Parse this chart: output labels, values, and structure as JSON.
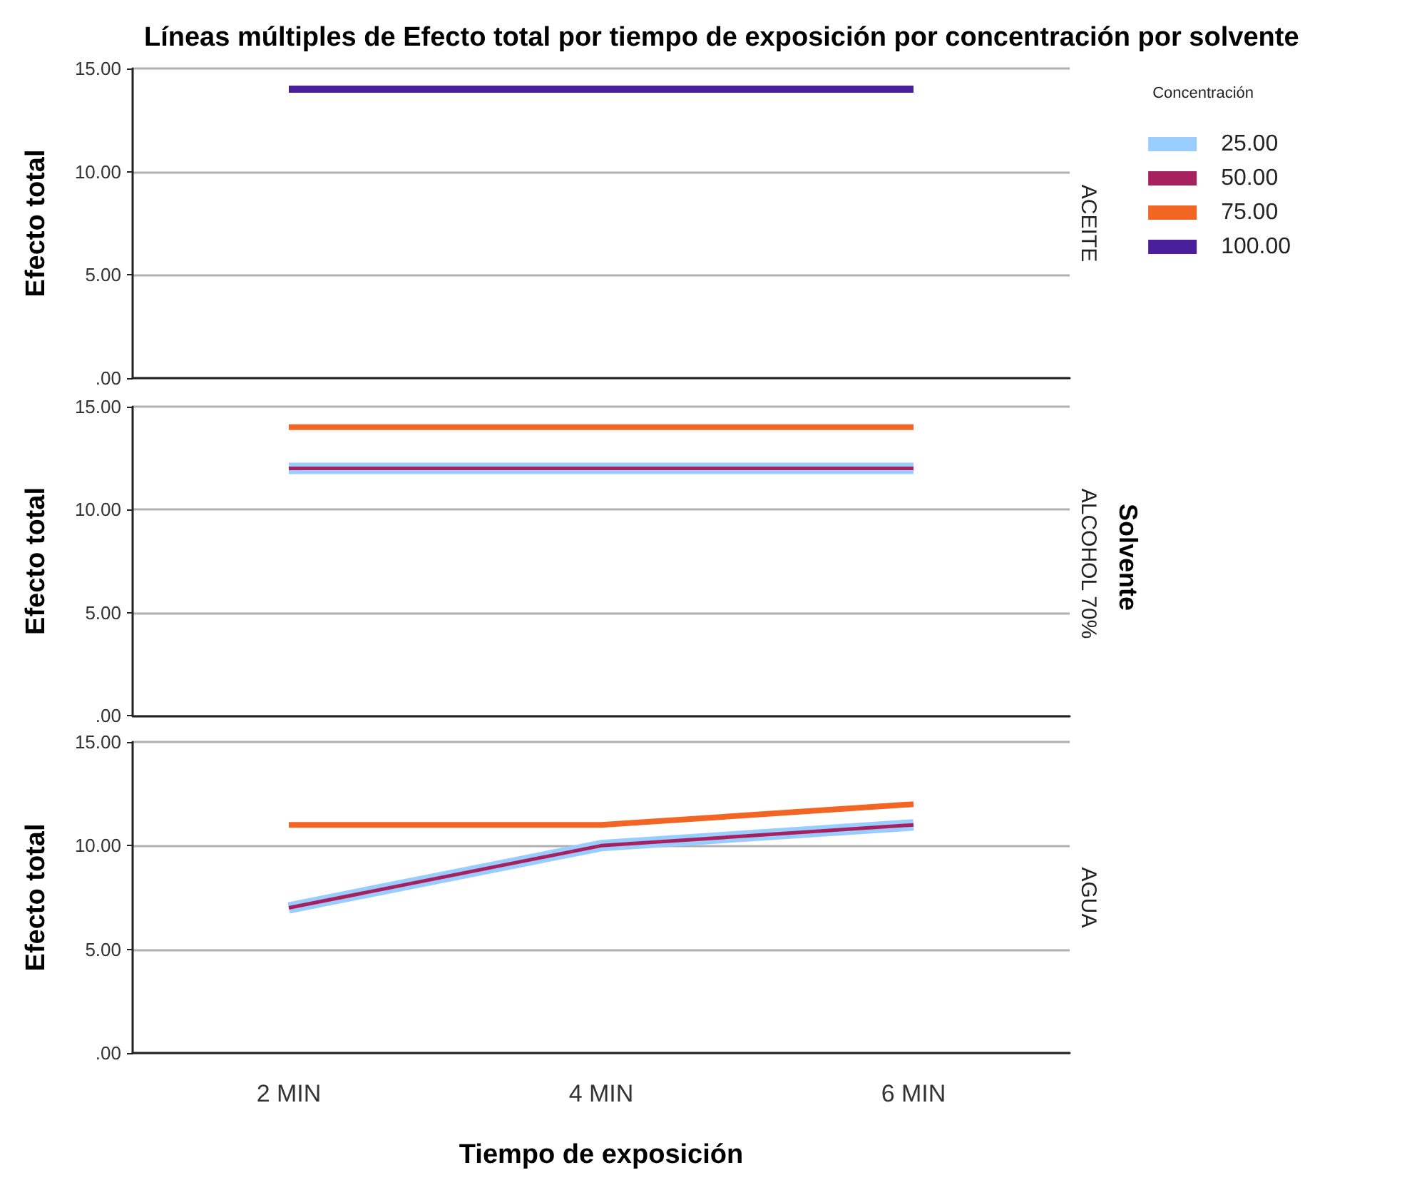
{
  "chart_data": [
    {
      "type": "line",
      "title": "Líneas múltiples de Efecto total por tiempo de exposición por concentración por solvente",
      "ylabel": "Efecto total",
      "y2label": "ACEITE",
      "legend_title": "Concentración",
      "legend": "top right",
      "grid": "y",
      "tick_labels": "y",
      "categories": [
        null,
        null,
        null
      ],
      "ylim": [
        0,
        15
      ],
      "yticks": [
        {
          "value": 0,
          "label": ".00"
        },
        {
          "value": 5,
          "label": "5.00"
        },
        {
          "value": 10,
          "label": "10.00"
        },
        {
          "value": 15,
          "label": "15.00"
        }
      ],
      "series": [
        {
          "name": "25.00",
          "color": "#99ccff",
          "values": [
            null,
            null,
            null
          ]
        },
        {
          "name": "50.00",
          "color": "#a8215f",
          "values": [
            null,
            null,
            null
          ]
        },
        {
          "name": "75.00",
          "color": "#f26522",
          "values": [
            null,
            null,
            null
          ]
        },
        {
          "name": "100.00",
          "color": "#4b1e9e",
          "values": [
            14,
            14,
            14
          ]
        }
      ]
    },
    {
      "type": "line",
      "ylabel": "Efecto total",
      "y2label": "ALCOHOL 70%",
      "annotations": [
        "Solvente"
      ],
      "grid": "y",
      "tick_labels": "y",
      "categories": [
        null,
        null,
        null
      ],
      "ylim": [
        0,
        15
      ],
      "yticks": [
        {
          "value": 0,
          "label": ".00"
        },
        {
          "value": 5,
          "label": "5.00"
        },
        {
          "value": 10,
          "label": "10.00"
        },
        {
          "value": 15,
          "label": "15.00"
        }
      ],
      "series": [
        {
          "color": "#99ccff",
          "values": [
            12,
            12,
            12
          ]
        },
        {
          "color": "#a8215f",
          "values": [
            12,
            12,
            12
          ]
        },
        {
          "color": "#f26522",
          "values": [
            14,
            14,
            14
          ]
        }
      ]
    },
    {
      "type": "line",
      "ylabel": "Efecto total",
      "y2label": "AGUA",
      "xlabel": "Tiempo de exposición",
      "grid": "y",
      "categories": [
        "2 MIN",
        "4 MIN",
        "6 MIN"
      ],
      "ylim": [
        0,
        15
      ],
      "yticks": [
        {
          "value": 0,
          "label": ".00"
        },
        {
          "value": 5,
          "label": "5.00"
        },
        {
          "value": 10,
          "label": "10.00"
        },
        {
          "value": 15,
          "label": "15.00"
        }
      ],
      "series": [
        {
          "color": "#99ccff",
          "values": [
            7,
            10,
            11
          ]
        },
        {
          "color": "#a8215f",
          "values": [
            7,
            10,
            11
          ]
        },
        {
          "color": "#f26522",
          "values": [
            11,
            11,
            12
          ]
        }
      ]
    }
  ]
}
